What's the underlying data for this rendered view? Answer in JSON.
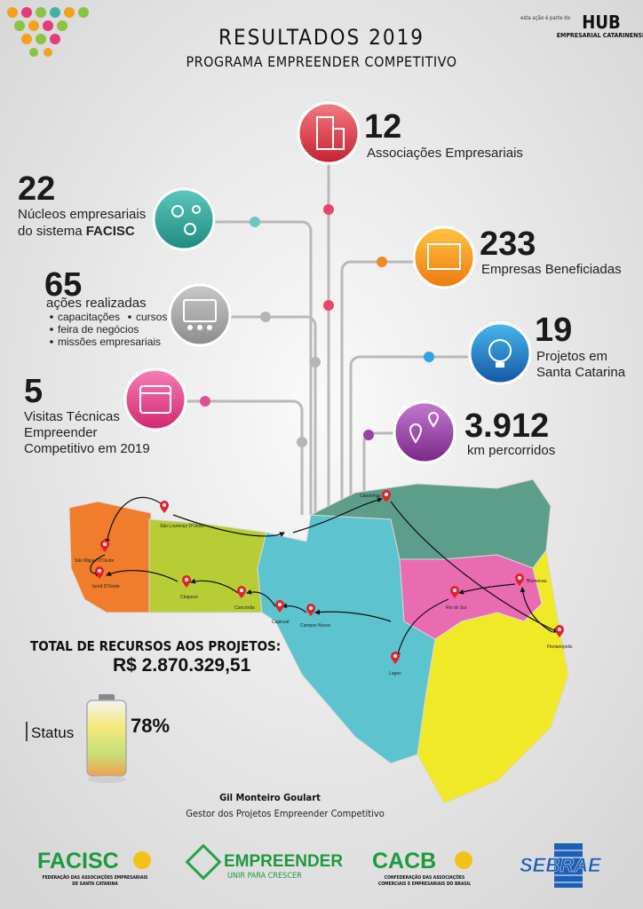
{
  "header": {
    "title": "RESULTADOS 2019",
    "subtitle": "PROGRAMA EMPREENDER COMPETITIVO",
    "hub_note": "esta ação é parte do",
    "hub_name": "HUB",
    "hub_sub": "EMPRESARIAL CATARINENSE"
  },
  "stats": [
    {
      "value": "12",
      "label": "Associações Empresariais"
    },
    {
      "value": "22",
      "label": "Núcleos empresariais",
      "label2": "do sistema",
      "label_bold": "FACISC"
    },
    {
      "value": "233",
      "label": "Empresas Beneficiadas"
    },
    {
      "value": "65",
      "label": "ações realizadas",
      "items": [
        "capacitações",
        "cursos",
        "feira de negócios",
        "missões empresariais"
      ]
    },
    {
      "value": "19",
      "label": "Projetos em",
      "label2": "Santa Catarina"
    },
    {
      "value": "5",
      "label": "Visitas Técnicas",
      "label2": "Empreender",
      "label3": "Competitivo em 2019"
    },
    {
      "value": "3.912",
      "label": "km percorridos"
    }
  ],
  "map": {
    "cities": [
      "São Lourenço D'Oeste",
      "São Miguel D'Oeste",
      "Iporã D'Oeste",
      "Chapecó",
      "Concórdia",
      "Capinzal",
      "Campos Novos",
      "Canoinhas",
      "Rio do Sul",
      "Blumenau",
      "Florianópolis",
      "Lages"
    ]
  },
  "total": {
    "label": "TOTAL DE RECURSOS AOS PROJETOS:",
    "value": "R$ 2.870.329,51"
  },
  "status": {
    "label": "Status",
    "value": "78%"
  },
  "signature": {
    "name": "Gil Monteiro Goulart",
    "role": "Gestor dos Projetos Empreender Competitivo"
  },
  "footer": [
    {
      "name": "FACISC",
      "sub": "FEDERAÇÃO DAS ASSOCIAÇÕES EMPRESARIAIS",
      "sub2": "DE SANTA CATARINA"
    },
    {
      "name": "EMPREENDER",
      "sub": "UNIR PARA CRESCER"
    },
    {
      "name": "CACB",
      "sub": "CONFEDERAÇÃO DAS ASSOCIAÇÕES",
      "sub2": "COMERCIAIS E EMPRESARIAIS DO BRASIL"
    },
    {
      "name": "SEBRAE"
    }
  ]
}
